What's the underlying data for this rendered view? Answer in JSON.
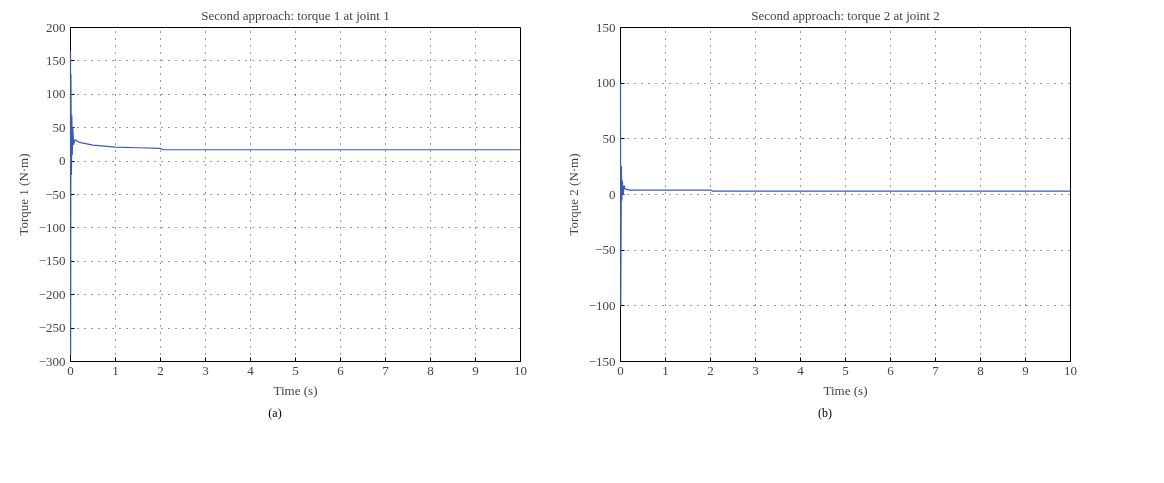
{
  "chart_data": [
    {
      "type": "line",
      "title": "Second approach: torque 1 at joint 1",
      "xlabel": "Time (s)",
      "ylabel": "Torque 1 (N·m)",
      "annotations": [
        "(a)"
      ],
      "x": [
        0,
        0.003,
        0.01,
        0.02,
        0.03,
        0.04,
        0.05,
        0.07,
        0.1,
        0.2,
        0.5,
        1,
        1.5,
        2,
        2.05,
        10
      ],
      "series": [
        {
          "color": "#3a5bb5",
          "values": [
            165,
            -290,
            130,
            -20,
            68,
            10,
            50,
            25,
            32,
            28,
            24,
            21,
            20,
            19,
            17,
            17
          ]
        }
      ],
      "xlim": [
        0,
        10
      ],
      "xticks": [
        0,
        1,
        2,
        3,
        4,
        5,
        6,
        7,
        8,
        9,
        10
      ],
      "ylim": [
        -300,
        200
      ],
      "yticks": [
        -300,
        -250,
        -200,
        -150,
        -100,
        -50,
        0,
        50,
        100,
        150,
        200
      ],
      "grid": true,
      "line_style": "solid"
    },
    {
      "type": "line",
      "title": "Second approach: torque 2 at joint 2",
      "xlabel": "Time (s)",
      "ylabel": "Torque 2 (N·m)",
      "annotations": [
        "(b)"
      ],
      "x": [
        0,
        0.005,
        0.02,
        0.03,
        0.04,
        0.06,
        0.08,
        0.1,
        0.2,
        2,
        2.05,
        10
      ],
      "series": [
        {
          "color": "#3a5bb5",
          "values": [
            100,
            -100,
            25,
            -5,
            12,
            0,
            8,
            5,
            4,
            4,
            3,
            3
          ]
        }
      ],
      "xlim": [
        0,
        10
      ],
      "xticks": [
        0,
        1,
        2,
        3,
        4,
        5,
        6,
        7,
        8,
        9,
        10
      ],
      "ylim": [
        -150,
        150
      ],
      "yticks": [
        -150,
        -100,
        -50,
        0,
        50,
        100,
        150
      ],
      "grid": true,
      "line_style": "solid"
    }
  ]
}
